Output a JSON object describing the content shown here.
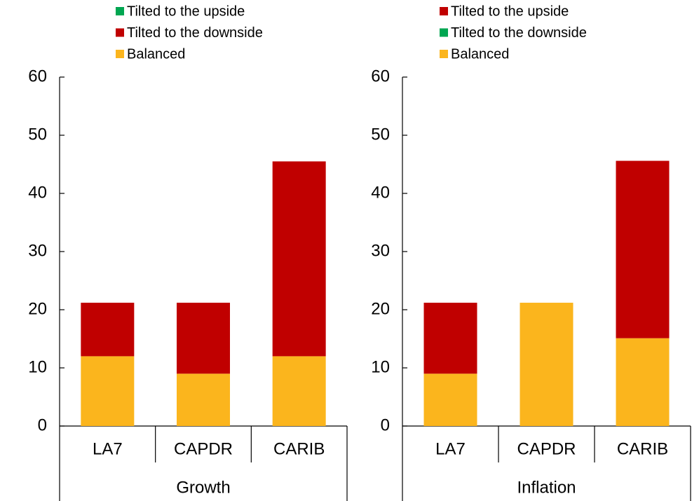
{
  "chart_data": [
    {
      "type": "bar",
      "stacked": true,
      "xlabel": "Growth",
      "categories": [
        "LA7",
        "CAPDR",
        "CARIB"
      ],
      "series": [
        {
          "name": "Tilted to the upside",
          "color": "#00a651",
          "values": [
            0,
            0,
            0
          ]
        },
        {
          "name": "Tilted to the downside",
          "color": "#c00000",
          "values": [
            9.2,
            12.2,
            33.5
          ]
        },
        {
          "name": "Balanced",
          "color": "#fbb51d",
          "values": [
            12,
            9,
            12
          ]
        }
      ],
      "ylim": [
        0,
        60
      ],
      "yticks": [
        0,
        10,
        20,
        30,
        40,
        50,
        60
      ]
    },
    {
      "type": "bar",
      "stacked": true,
      "xlabel": "Inflation",
      "categories": [
        "LA7",
        "CAPDR",
        "CARIB"
      ],
      "series": [
        {
          "name": "Tilted to the upside",
          "color": "#c00000",
          "values": [
            12.2,
            0,
            30.5
          ]
        },
        {
          "name": "Tilted to the downside",
          "color": "#00a651",
          "values": [
            0,
            0,
            0
          ]
        },
        {
          "name": "Balanced",
          "color": "#fbb51d",
          "values": [
            9,
            21.2,
            15.1
          ]
        }
      ],
      "ylim": [
        0,
        60
      ],
      "yticks": [
        0,
        10,
        20,
        30,
        40,
        50,
        60
      ]
    }
  ]
}
